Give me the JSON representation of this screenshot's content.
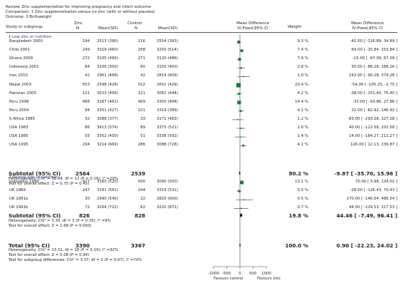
{
  "header": {
    "review": "Review:  Zinc supplementation for improving pregnancy and infant outcome",
    "comparison": "Comparison:  1 Zinc supplementation versus no zinc (with or without placebo)",
    "outcome": "Outcome:  3 Birthweight"
  },
  "columns": {
    "study": "Study or subgroup",
    "zinc": "Zinc",
    "zinc_n": "N",
    "zinc_mean": "Mean(SD)",
    "control": "Control",
    "control_n": "N",
    "control_mean": "Mean(SD)",
    "md": "Mean Difference",
    "md_sub": "IV,Fixed,95% CI",
    "weight": "Weight",
    "md2": "Mean Difference",
    "md2_sub": "IV,Fixed,95% CI"
  },
  "groups": [
    {
      "label": "1 Low zinc or nutrition",
      "subtotal_label": "Subtotal (95% CI)",
      "subtotal_zinc_n": "2564",
      "subtotal_control_n": "2539",
      "subtotal_weight": "80.2 %",
      "subtotal_md": "-9.87 [ -35.70, 15.96 ]",
      "heterogeneity": "Heterogeneity: Chi² = 16.84, df = 12 (P = 0.16); I² =29%",
      "overall_effect": "Test for overall effect: Z = 0.75 (P = 0.45)"
    },
    {
      "label": "2 Normal zinc or nutrition",
      "subtotal_label": "Subtotal (95% CI)",
      "subtotal_zinc_n": "826",
      "subtotal_control_n": "828",
      "subtotal_weight": "19.8 %",
      "subtotal_md": "44.46 [ -7.49, 96.41 ]",
      "heterogeneity": "Heterogeneity: Chi² = 3.30, df = 3 (P = 0.35); I² =9%",
      "overall_effect": "Test for overall effect: Z = 1.68 (P = 0.093)"
    }
  ],
  "total": {
    "label": "Total (95% CI)",
    "zinc_n": "3390",
    "control_n": "3367",
    "weight": "100.0 %",
    "md": "0.90 [ -22.23, 24.02 ]",
    "heterogeneity": "Heterogeneity: Chi² = 23.51, df = 16 (P = 0.10); I² =32%",
    "overall_effect": "Test for overall effect: Z = 0.08 (P = 0.94)",
    "subgroup_diff": "Test for subgroup differences: Chi² = 3.37, df = 1 (P = 0.07), I² =70%"
  },
  "axis": {
    "ticks": [
      "-1000",
      "-500",
      "0",
      "500",
      "1000"
    ],
    "favours_left": "Favours control",
    "favours_right": "Favours zinc"
  },
  "colors": {
    "marker": "#1a7a3a",
    "text": "#222222",
    "group": "#1f3a78"
  },
  "chart_data": {
    "type": "forest",
    "xlim": [
      -1000,
      1000
    ],
    "studies": [
      {
        "study": "Bangladesh 2000",
        "group": 1,
        "zinc_n": "194",
        "zinc_mean": "2513 (390)",
        "control_n": "216",
        "control_mean": "2554 (393)",
        "weight": "9.3 %",
        "md_text": "-41.00 [ -116.89, 34.89 ]",
        "md": -41.0,
        "lo": -116.89,
        "hi": 34.89,
        "w": 9.3
      },
      {
        "study": "Chile 2001",
        "group": 1,
        "zinc_n": "249",
        "zinc_mean": "3319 (460)",
        "control_n": "258",
        "control_mean": "3250 (514)",
        "weight": "7.4 %",
        "md_text": "69.00 [ -15.84, 153.84 ]",
        "md": 69.0,
        "lo": -15.84,
        "hi": 153.84,
        "w": 7.4
      },
      {
        "study": "Ghana 2009",
        "group": 1,
        "zinc_n": "272",
        "zinc_mean": "3105 (490)",
        "control_n": "271",
        "control_mean": "3120 (486)",
        "weight": "7.9 %",
        "md_text": "-15.00 [ -97.09, 67.09 ]",
        "md": -15.0,
        "lo": -97.09,
        "hi": 67.09,
        "w": 7.9
      },
      {
        "study": "Indonesia 2001",
        "group": 1,
        "zinc_n": "84",
        "zinc_mean": "3200 (500)",
        "control_n": "80",
        "control_mean": "3150 (400)",
        "weight": "2.8 %",
        "md_text": "50.00 [ -88.26, 188.26 ]",
        "md": 50.0,
        "lo": -88.26,
        "hi": 188.26,
        "w": 2.8
      },
      {
        "study": "Iran 2010",
        "group": 1,
        "zinc_n": "42",
        "zinc_mean": "2961 (468)",
        "control_n": "42",
        "control_mean": "2819 (609)",
        "weight": "1.0 %",
        "md_text": "142.00 [ -90.28, 374.28 ]",
        "md": 142.0,
        "lo": -90.28,
        "hi": 374.28,
        "w": 1.0
      },
      {
        "study": "Nepal 2003",
        "group": 1,
        "zinc_n": "553",
        "control_n": "522",
        "zinc_mean": "2598 (428)",
        "control_mean": "2652 (429)",
        "weight": "20.4 %",
        "md_text": "-54.00 [ -105.25, -2.75 ]",
        "md": -54.0,
        "lo": -105.25,
        "hi": -2.75,
        "w": 20.4
      },
      {
        "study": "Pakistan 2005",
        "group": 1,
        "zinc_n": "121",
        "zinc_mean": "3023 (456)",
        "control_n": "121",
        "control_mean": "3061 (444)",
        "weight": "4.2 %",
        "md_text": "-38.00 [ -151.40, 75.40 ]",
        "md": -38.0,
        "lo": -151.4,
        "hi": 75.4,
        "w": 4.2
      },
      {
        "study": "Peru 1999",
        "group": 1,
        "zinc_n": "488",
        "zinc_mean": "3267 (461)",
        "control_n": "469",
        "control_mean": "3300 (498)",
        "weight": "14.4 %",
        "md_text": "-33.00 [ -93.86, 27.86 ]",
        "md": -33.0,
        "lo": -93.86,
        "hi": 27.86,
        "w": 14.4
      },
      {
        "study": "Peru 2004",
        "group": 1,
        "zinc_n": "94",
        "zinc_mean": "3351 (427)",
        "control_n": "101",
        "control_mean": "3319 (389)",
        "weight": "4.1 %",
        "md_text": "32.00 [ -82.92, 146.92 ]",
        "md": 32.0,
        "lo": -82.92,
        "hi": 146.92,
        "w": 4.1
      },
      {
        "study": "S Africa 1985",
        "group": 1,
        "zinc_n": "32",
        "zinc_mean": "3088 (377)",
        "control_n": "33",
        "control_mean": "3171 (483)",
        "weight": "1.2 %",
        "md_text": "-83.00 [ -293.28, 127.28 ]",
        "md": -83.0,
        "lo": -293.28,
        "hi": 127.28,
        "w": 1.2
      },
      {
        "study": "USA 1983",
        "group": 1,
        "zinc_n": "86",
        "zinc_mean": "3413 (574)",
        "control_n": "89",
        "control_mean": "3373 (521)",
        "weight": "2.0 %",
        "md_text": "40.00 [ -122.58, 202.58 ]",
        "md": 40.0,
        "lo": -122.58,
        "hi": 202.58,
        "w": 2.0
      },
      {
        "study": "USA 1985",
        "group": 1,
        "zinc_n": "55",
        "zinc_mean": "3352 (430)",
        "control_n": "51",
        "control_mean": "3338 (592)",
        "weight": "1.4 %",
        "md_text": "14.00 [ -184.27, 212.27 ]",
        "md": 14.0,
        "lo": -184.27,
        "hi": 212.27,
        "w": 1.4
      },
      {
        "study": "USA 1995",
        "group": 1,
        "zinc_n": "294",
        "zinc_mean": "3214 (669)",
        "control_n": "286",
        "control_mean": "3088 (728)",
        "weight": "4.1 %",
        "md_text": "126.00 [ 12.13, 239.87 ]",
        "md": 126.0,
        "lo": 12.13,
        "hi": 239.87,
        "w": 4.1
      },
      {
        "study": "Indonesia 1999",
        "group": 2,
        "zinc_n": "477",
        "zinc_mean": "3160 (520)",
        "control_n": "500",
        "control_mean": "3090 (500)",
        "weight": "13.1 %",
        "md_text": "70.00 [ 5.98, 134.02 ]",
        "md": 70.0,
        "lo": 5.98,
        "hi": 134.02,
        "w": 13.1
      },
      {
        "study": "UK 1989",
        "group": 2,
        "zinc_n": "247",
        "zinc_mean": "3291 (581)",
        "control_n": "244",
        "control_mean": "3319 (531)",
        "weight": "5.5 %",
        "md_text": "-28.00 [ -126.43, 70.43 ]",
        "md": -28.0,
        "lo": -126.43,
        "hi": 70.43,
        "w": 5.5
      },
      {
        "study": "UK 1991a",
        "group": 2,
        "zinc_n": "30",
        "zinc_mean": "2990 (540)",
        "control_n": "22",
        "control_mean": "2820 (600)",
        "weight": "0.5 %",
        "md_text": "170.00 [ -146.54, 486.54 ]",
        "md": 170.0,
        "lo": -146.54,
        "hi": 486.54,
        "w": 0.5
      },
      {
        "study": "UK 1991b",
        "group": 2,
        "zinc_n": "72",
        "zinc_mean": "3264 (722)",
        "control_n": "62",
        "control_mean": "3220 (871)",
        "weight": "0.7 %",
        "md_text": "44.00 [ -229.53, 317.53 ]",
        "md": 44.0,
        "lo": -229.53,
        "hi": 317.53,
        "w": 0.7
      }
    ],
    "subtotals": [
      {
        "group": 1,
        "md": -9.87,
        "lo": -35.7,
        "hi": 15.96
      },
      {
        "group": 2,
        "md": 44.46,
        "lo": -7.49,
        "hi": 96.41
      }
    ],
    "total": {
      "md": 0.9,
      "lo": -22.23,
      "hi": 24.02
    }
  }
}
